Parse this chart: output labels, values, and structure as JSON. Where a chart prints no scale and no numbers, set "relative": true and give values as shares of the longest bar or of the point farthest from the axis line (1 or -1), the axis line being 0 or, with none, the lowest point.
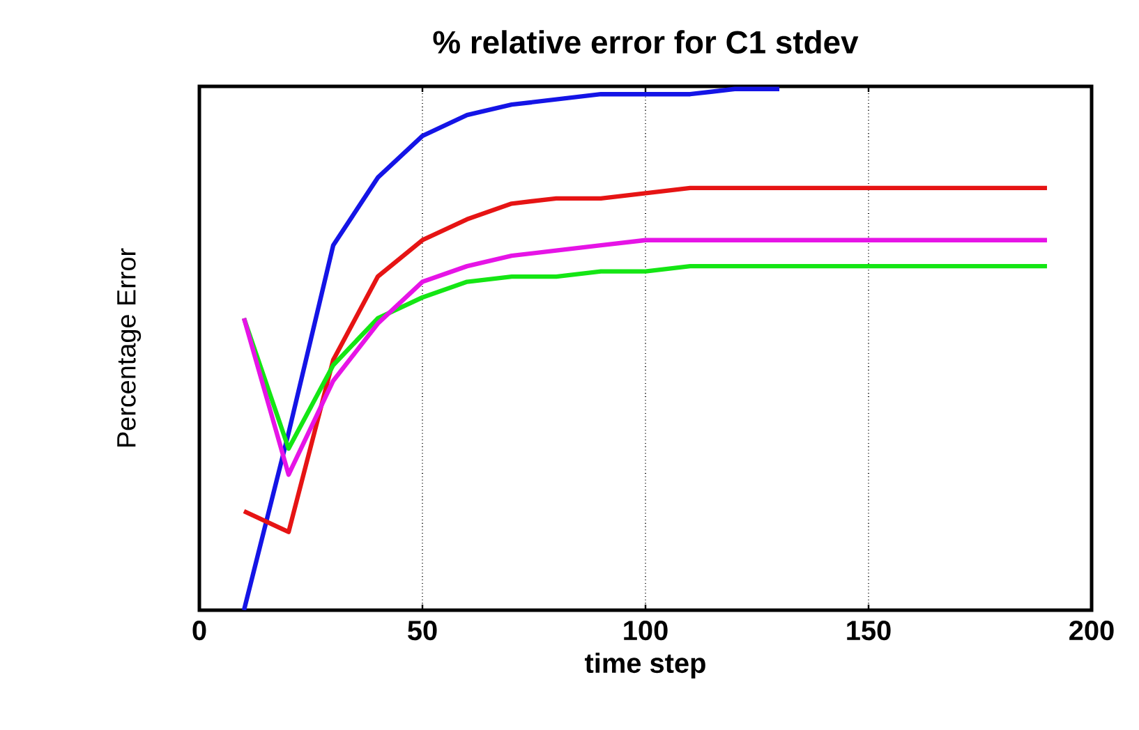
{
  "chart_data": {
    "type": "line",
    "title": "% relative error for C1 stdev",
    "xlabel": "time step",
    "ylabel": "Percentage Error",
    "relative": true,
    "x": [
      10,
      20,
      30,
      40,
      50,
      60,
      70,
      80,
      90,
      100,
      110,
      120,
      130,
      140,
      150,
      160,
      170,
      180,
      190
    ],
    "xlim": [
      0,
      200
    ],
    "xticks": [
      0,
      50,
      100,
      150,
      200
    ],
    "grid": "x",
    "line_style": "solid",
    "series": [
      {
        "color": "#1414e6",
        "values": [
          0,
          0.34,
          0.7,
          0.83,
          0.91,
          0.95,
          0.97,
          0.98,
          0.99,
          0.99,
          0.99,
          1.0,
          1.0,
          null,
          null,
          null,
          null,
          null,
          null
        ]
      },
      {
        "color": "#e61414",
        "values": [
          0.19,
          0.15,
          0.48,
          0.64,
          0.71,
          0.75,
          0.78,
          0.79,
          0.79,
          0.8,
          0.81,
          0.81,
          0.81,
          0.81,
          0.81,
          0.81,
          0.81,
          0.81,
          0.81
        ]
      },
      {
        "color": "#14e614",
        "values": [
          0.56,
          0.31,
          0.47,
          0.56,
          0.6,
          0.63,
          0.64,
          0.64,
          0.65,
          0.65,
          0.66,
          0.66,
          0.66,
          0.66,
          0.66,
          0.66,
          0.66,
          0.66,
          0.66
        ]
      },
      {
        "color": "#e614e6",
        "values": [
          0.56,
          0.26,
          0.44,
          0.55,
          0.63,
          0.66,
          0.68,
          0.69,
          0.7,
          0.71,
          0.71,
          0.71,
          0.71,
          0.71,
          0.71,
          0.71,
          0.71,
          0.71,
          0.71
        ]
      }
    ]
  }
}
